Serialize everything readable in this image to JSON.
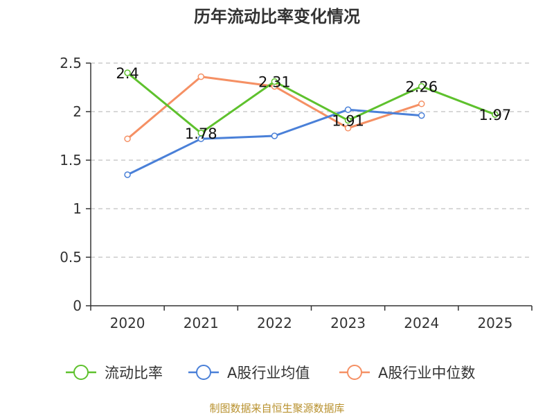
{
  "chart_data": {
    "type": "line",
    "title": "历年流动比率变化情况",
    "categories": [
      "2020",
      "2021",
      "2022",
      "2023",
      "2024",
      "2025"
    ],
    "ylim": [
      0,
      2.5
    ],
    "yticks": [
      "0",
      "0.5",
      "1",
      "1.5",
      "2",
      "2.5"
    ],
    "grid": true,
    "legend_position": "bottom",
    "series": [
      {
        "name": "流动比率",
        "color": "#5ec12d",
        "values": [
          2.4,
          1.78,
          2.31,
          1.91,
          2.26,
          1.97
        ],
        "labels": [
          "2.4",
          "1.78",
          "2.31",
          "1.91",
          "2.26",
          "1.97"
        ]
      },
      {
        "name": "A股行业均值",
        "color": "#4a80d8",
        "values": [
          1.35,
          1.72,
          1.75,
          2.02,
          1.96,
          null
        ]
      },
      {
        "name": "A股行业中位数",
        "color": "#f59064",
        "values": [
          1.72,
          2.36,
          2.26,
          1.83,
          2.08,
          null
        ]
      }
    ]
  },
  "source": "制图数据来自恒生聚源数据库"
}
